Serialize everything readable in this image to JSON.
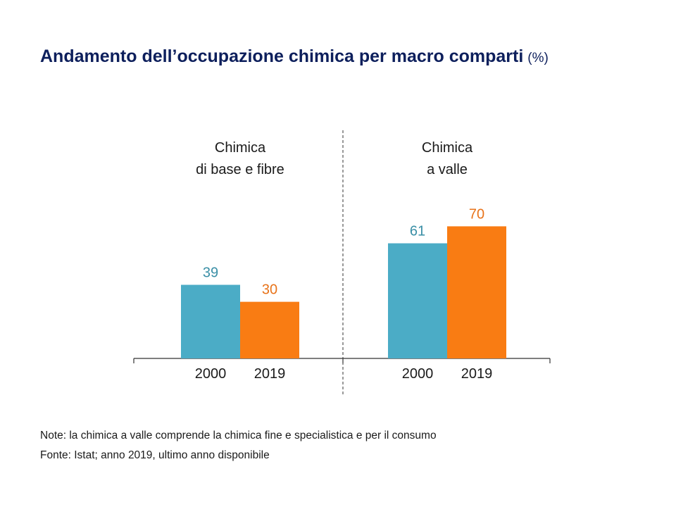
{
  "title": "Andamento dell’occupazione chimica per macro comparti",
  "title_unit": "(%)",
  "chart_data": {
    "type": "bar",
    "groups": [
      {
        "label_lines": [
          "Chimica",
          "di base e fibre"
        ],
        "categories": [
          "2000",
          "2019"
        ],
        "values": [
          39,
          30
        ]
      },
      {
        "label_lines": [
          "Chimica",
          "a valle"
        ],
        "categories": [
          "2000",
          "2019"
        ],
        "values": [
          61,
          70
        ]
      }
    ],
    "series_colors": [
      "#4bacc6",
      "#f97c13"
    ],
    "label_colors": [
      "#3a8fa6",
      "#e8731a"
    ],
    "ylim": [
      0,
      100
    ],
    "grid": false,
    "legend": "none"
  },
  "notes": [
    "Note: la chimica a valle comprende la chimica fine e specialistica e per il consumo",
    "Fonte: Istat; anno 2019, ultimo anno disponibile"
  ]
}
